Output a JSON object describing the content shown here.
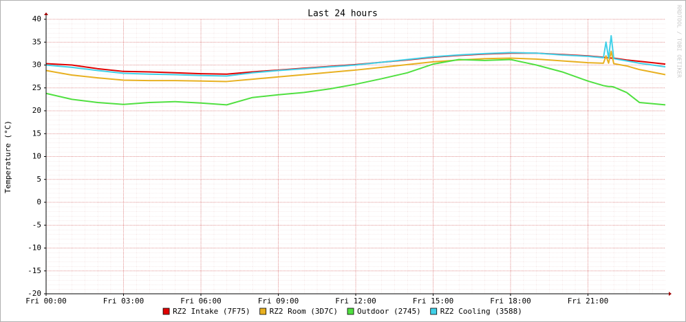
{
  "chart_data": {
    "type": "line",
    "title": "Last 24 hours",
    "y_label": "Temperature (°C)",
    "watermark": "RRDTOOL / TOBI OETIKER",
    "grid": true,
    "xlim": [
      0,
      24
    ],
    "xticks": [
      {
        "value": 0,
        "label": "Fri 00:00"
      },
      {
        "value": 3,
        "label": "Fri 03:00"
      },
      {
        "value": 6,
        "label": "Fri 06:00"
      },
      {
        "value": 9,
        "label": "Fri 09:00"
      },
      {
        "value": 12,
        "label": "Fri 12:00"
      },
      {
        "value": 15,
        "label": "Fri 15:00"
      },
      {
        "value": 18,
        "label": "Fri 18:00"
      },
      {
        "value": 21,
        "label": "Fri 21:00"
      }
    ],
    "ylim": [
      -20,
      40
    ],
    "yticks": [
      -20,
      -15,
      -10,
      -5,
      0,
      5,
      10,
      15,
      20,
      25,
      30,
      35,
      40
    ],
    "x": [
      0,
      1,
      2,
      3,
      4,
      5,
      6,
      7,
      8,
      9,
      10,
      11,
      12,
      13,
      14,
      15,
      16,
      17,
      18,
      19,
      20,
      21,
      21.6,
      21.7,
      21.8,
      21.9,
      22,
      22.5,
      23,
      24
    ],
    "series": [
      {
        "name": "RZ2 Intake (7F75)",
        "color": "#e00000",
        "values": [
          30.3,
          30,
          29.2,
          28.6,
          28.5,
          28.3,
          28.1,
          28.0,
          28.5,
          28.9,
          29.3,
          29.7,
          30.1,
          30.6,
          31.1,
          31.7,
          32.1,
          32.4,
          32.6,
          32.6,
          32.3,
          32.0,
          31.7,
          31.6,
          31.6,
          31.5,
          31.5,
          31.1,
          30.8,
          30.2
        ]
      },
      {
        "name": "RZ2 Room (3D7C)",
        "color": "#e8b020",
        "values": [
          28.8,
          27.8,
          27.2,
          26.7,
          26.6,
          26.6,
          26.5,
          26.4,
          26.9,
          27.4,
          27.9,
          28.4,
          28.9,
          29.5,
          30.1,
          30.7,
          31.1,
          31.4,
          31.5,
          31.3,
          30.9,
          30.5,
          30.4,
          32,
          30.4,
          33,
          30.3,
          29.8,
          29,
          27.9
        ]
      },
      {
        "name": "Outdoor (2745)",
        "color": "#50e040",
        "values": [
          23.8,
          22.5,
          21.8,
          21.4,
          21.8,
          22,
          21.7,
          21.3,
          22.9,
          23.5,
          24,
          24.8,
          25.8,
          27,
          28.3,
          30.2,
          31.2,
          31,
          31.2,
          30,
          28.5,
          26.5,
          25.5,
          25.4,
          25.3,
          25.3,
          25.2,
          24,
          21.8,
          21.3
        ]
      },
      {
        "name": "RZ2 Cooling (3588)",
        "color": "#40d0e8",
        "values": [
          30,
          29.5,
          28.8,
          28.2,
          28.0,
          27.9,
          27.7,
          27.6,
          28.3,
          28.8,
          29.2,
          29.6,
          30.0,
          30.6,
          31.2,
          31.8,
          32.2,
          32.5,
          32.7,
          32.6,
          32.2,
          31.9,
          31.6,
          35,
          31.5,
          36.4,
          31.4,
          30.9,
          30.4,
          29.6
        ]
      }
    ]
  }
}
